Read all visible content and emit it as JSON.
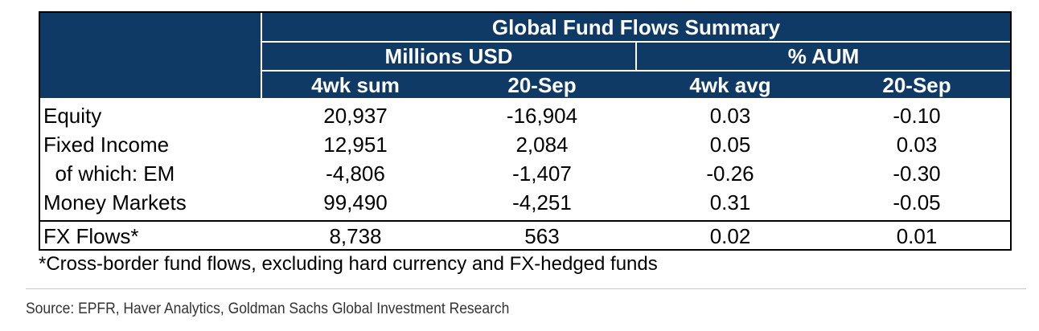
{
  "chart_data": {
    "type": "table",
    "title": "Global Fund Flows Summary",
    "column_groups": [
      "Millions USD",
      "% AUM"
    ],
    "columns": [
      "4wk sum",
      "20-Sep",
      "4wk avg",
      "20-Sep"
    ],
    "rows": [
      {
        "label": "Equity",
        "values": [
          "20,937",
          "-16,904",
          "0.03",
          "-0.10"
        ]
      },
      {
        "label": "Fixed Income",
        "values": [
          "12,951",
          "2,084",
          "0.05",
          "0.03"
        ]
      },
      {
        "label": "  of which: EM",
        "values": [
          "-4,806",
          "-1,407",
          "-0.26",
          "-0.30"
        ]
      },
      {
        "label": "Money Markets",
        "values": [
          "99,490",
          "-4,251",
          "0.31",
          "-0.05"
        ]
      },
      {
        "label": "FX Flows*",
        "values": [
          "8,738",
          "563",
          "0.02",
          "0.01"
        ]
      }
    ],
    "footnote": "*Cross-border fund flows, excluding hard currency and FX-hedged funds",
    "source": "Source: EPFR, Haver Analytics, Goldman Sachs Global Investment Research"
  },
  "colors": {
    "header_bg": "#0f3a66",
    "header_text": "#ffffff"
  }
}
